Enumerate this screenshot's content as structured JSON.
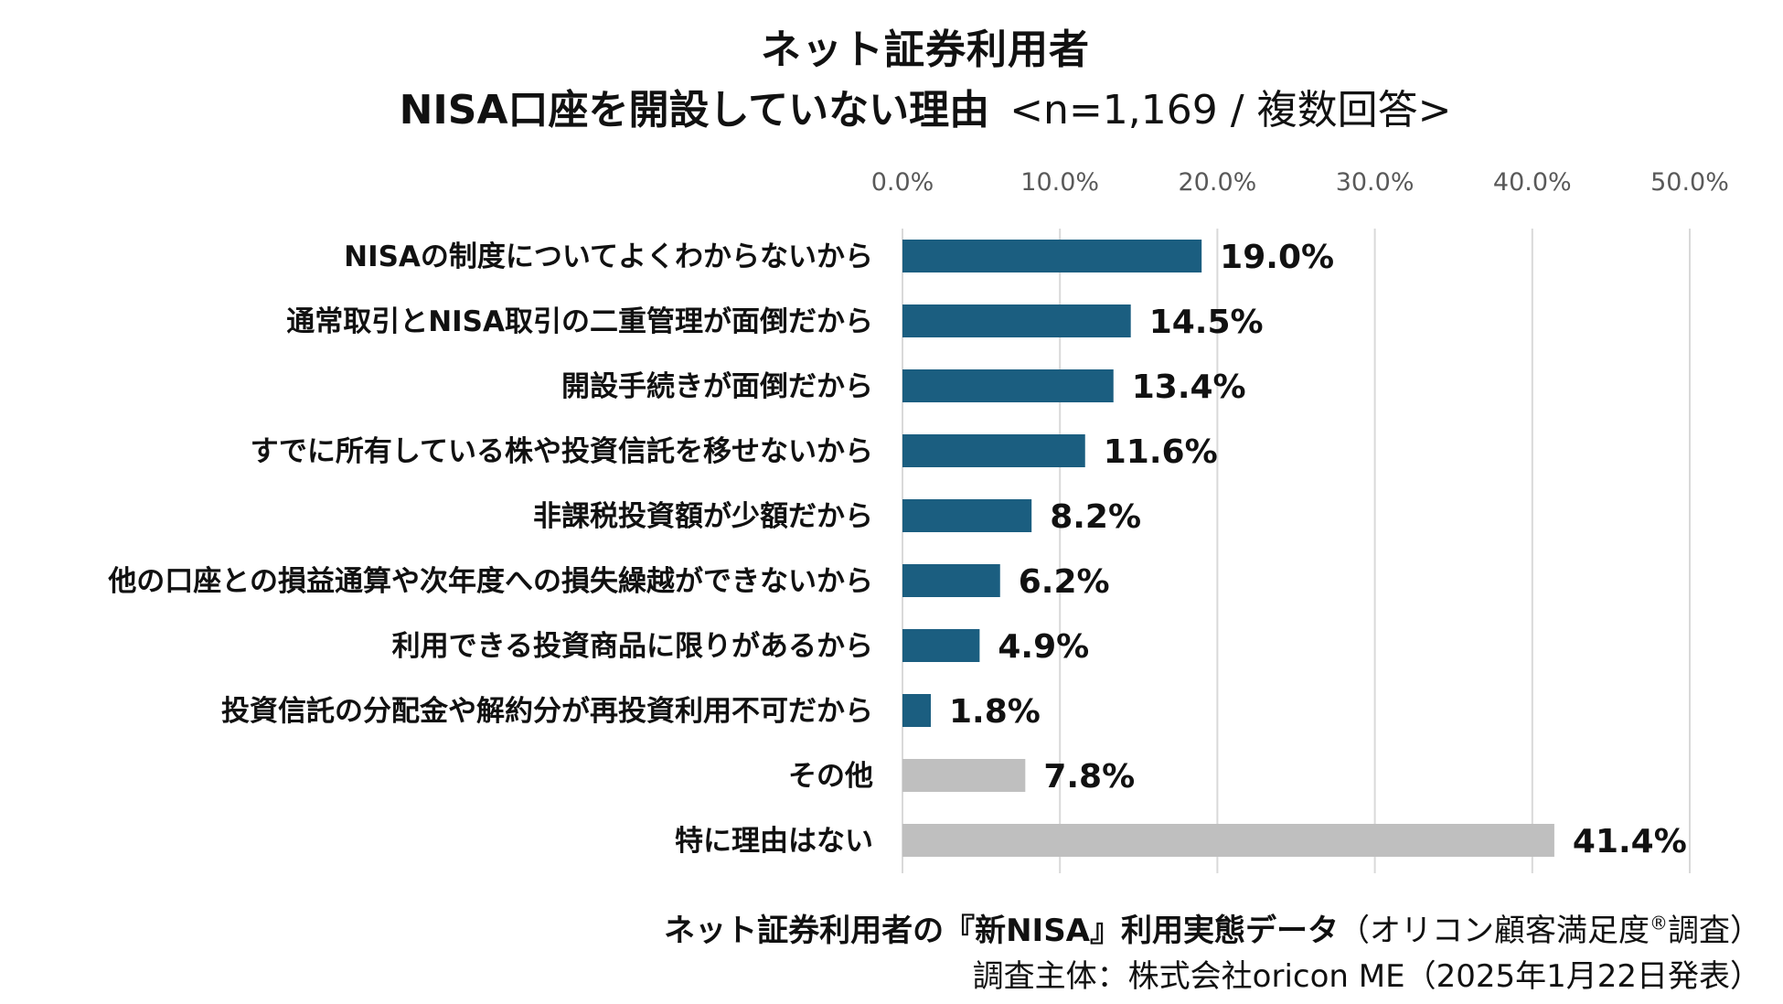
{
  "header": {
    "title": "ネット証券利用者",
    "subtitle": "NISA口座を開設していない理由",
    "note": "<n=1,169 / 複数回答>"
  },
  "footer": {
    "source_main": "ネット証券利用者の『新NISA』利用実態データ",
    "source_paren_open": "（",
    "source_paren_body": "オリコン顧客満足度",
    "source_reg": "®",
    "source_paren_tail": "調査）",
    "credit": "調査主体：株式会社oricon ME（2025年1月22日発表）"
  },
  "colors": {
    "primary_bar": "#1b5e80",
    "other_bar": "#bfbfbf",
    "grid": "#d9d9d9",
    "tick_text": "#595959"
  },
  "chart_data": {
    "type": "bar",
    "orientation": "horizontal",
    "xlim": [
      0,
      50
    ],
    "ticks": [
      "0.0%",
      "10.0%",
      "20.0%",
      "30.0%",
      "40.0%",
      "50.0%"
    ],
    "tick_values": [
      0,
      10,
      20,
      30,
      40,
      50
    ],
    "grid": true,
    "categories": [
      "NISAの制度についてよくわからないから",
      "通常取引とNISA取引の二重管理が面倒だから",
      "開設手続きが面倒だから",
      "すでに所有している株や投資信託を移せないから",
      "非課税投資額が少額だから",
      "他の口座との損益通算や次年度への損失繰越ができないから",
      "利用できる投資商品に限りがあるから",
      "投資信託の分配金や解約分が再投資利用不可だから",
      "その他",
      "特に理由はない"
    ],
    "values": [
      19.0,
      14.5,
      13.4,
      11.6,
      8.2,
      6.2,
      4.9,
      1.8,
      7.8,
      41.4
    ],
    "value_labels": [
      "19.0%",
      "14.5%",
      "13.4%",
      "11.6%",
      "8.2%",
      "6.2%",
      "4.9%",
      "1.8%",
      "7.8%",
      "41.4%"
    ],
    "bar_groups": [
      "primary",
      "primary",
      "primary",
      "primary",
      "primary",
      "primary",
      "primary",
      "primary",
      "other",
      "other"
    ]
  }
}
